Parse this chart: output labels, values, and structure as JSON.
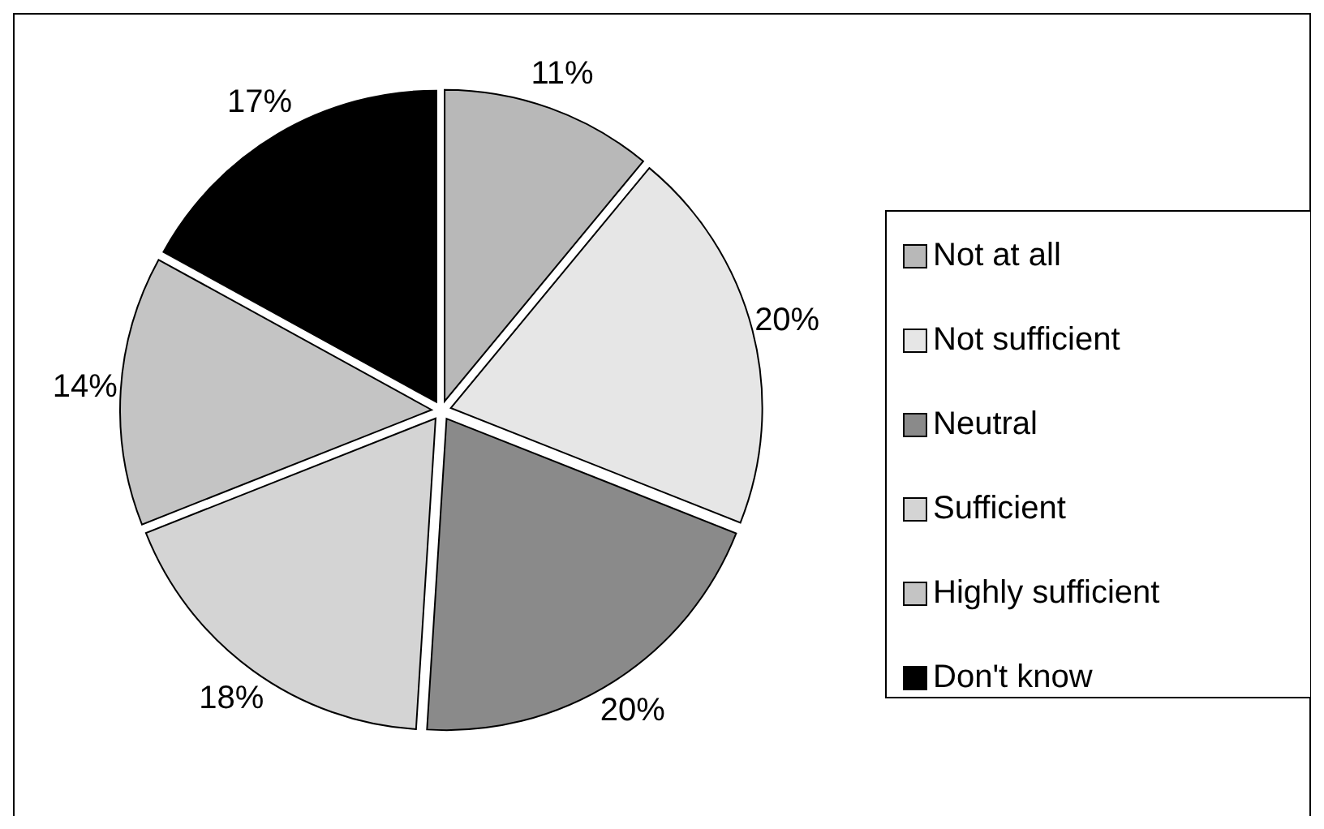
{
  "chart_data": {
    "type": "pie",
    "categories": [
      "Not at all",
      "Not sufficient",
      "Neutral",
      "Sufficient",
      "Highly sufficient",
      "Don't know"
    ],
    "values": [
      11,
      20,
      20,
      18,
      14,
      17
    ],
    "colors": [
      "#b8b8b8",
      "#e6e6e6",
      "#8a8a8a",
      "#d4d4d4",
      "#c4c4c4",
      "#000000"
    ],
    "value_labels": [
      "11%",
      "20%",
      "20%",
      "18%",
      "14%",
      "17%"
    ],
    "legend": "right"
  }
}
